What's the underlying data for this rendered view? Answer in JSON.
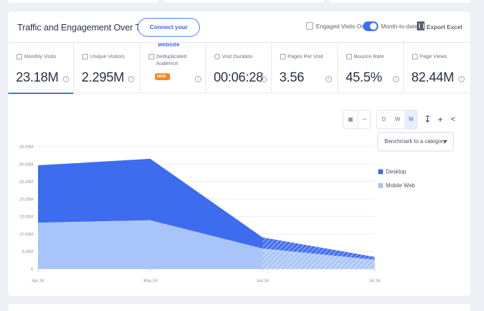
{
  "header": {
    "title": "Traffic and Engagement Over Time",
    "connect_label": "Connect your website",
    "engaged_label": "Engaged Visits Only",
    "month_label": "Month-to-date",
    "export_label": "Export Excel"
  },
  "metrics": [
    {
      "label": "Monthly Visits",
      "value": "23.18M"
    },
    {
      "label": "Unique Visitors",
      "value": "2.295M"
    },
    {
      "label": "Deduplicated Audience",
      "badge": "NEW"
    },
    {
      "label": "Visit Duration",
      "value": "00:06:28"
    },
    {
      "label": "Pages Per Visit",
      "value": "3.56"
    },
    {
      "label": "Bounce Rate",
      "value": "45.5%"
    },
    {
      "label": "Page Views",
      "value": "82.44M"
    }
  ],
  "granularity": [
    "D",
    "W",
    "M"
  ],
  "selected_granularity": "M",
  "benchmark_label": "Benchmark to a category",
  "colors": {
    "desktop": "#3e6cee",
    "mobile": "#a9c4f8",
    "accent": "#3c6ff0"
  },
  "chart_data": {
    "type": "area",
    "stacked": true,
    "x": [
      "Apr 24",
      "May 24",
      "Jun 24",
      "Jul 24"
    ],
    "y_ticks": [
      "0",
      "5.00M",
      "10.00M",
      "15.00M",
      "20.00M",
      "25.00M",
      "30.00M",
      "35.00M"
    ],
    "ylim": [
      0,
      35
    ],
    "series": [
      {
        "name": "Desktop",
        "values": [
          16.4,
          17.6,
          3.2,
          0.8
        ]
      },
      {
        "name": "Mobile Web",
        "values": [
          13.2,
          13.9,
          5.8,
          2.6
        ]
      }
    ],
    "grid": true,
    "legend": "right"
  }
}
